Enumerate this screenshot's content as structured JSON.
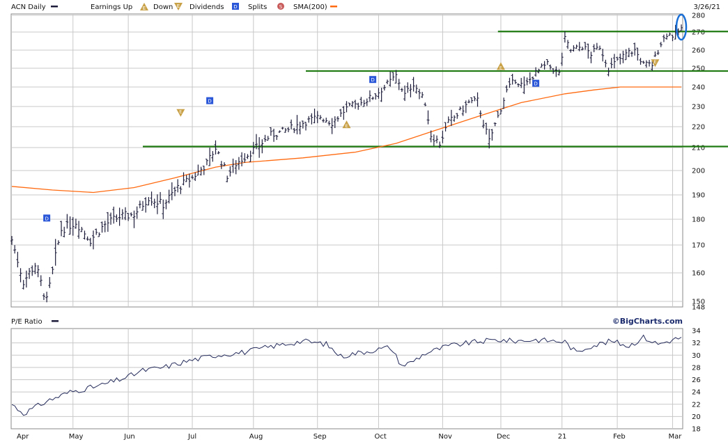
{
  "header": {
    "ticker_label": "ACN Daily",
    "earnings_up": "Earnings Up",
    "earnings_down": "Down",
    "dividends": "Dividends",
    "splits": "Splits",
    "sma": "SMA(200)",
    "date": "3/26/21"
  },
  "lower_header": {
    "pe_label": "P/E Ratio",
    "brand": "©BigCharts.com"
  },
  "colors": {
    "price_bar": "#1c1c3a",
    "sma": "#ff6a10",
    "resistance": "#1f7a12",
    "grid": "#c8c8c8",
    "dividend_marker": "#2a56d8",
    "earnings_marker": "#c8a046",
    "highlight": "#1a6fd6"
  },
  "chart_data": [
    {
      "type": "ohlc",
      "title": "ACN Daily",
      "ylim": [
        148,
        280
      ],
      "y_ticks": [
        148,
        150,
        160,
        170,
        180,
        190,
        200,
        210,
        220,
        230,
        240,
        250,
        260,
        270,
        280
      ],
      "x_month_labels": [
        "Apr",
        "May",
        "Jun",
        "Jul",
        "Aug",
        "Sep",
        "Oct",
        "Nov",
        "Dec",
        "21",
        "Feb",
        "Mar"
      ],
      "price_path": [
        [
          0,
          172
        ],
        [
          4,
          157
        ],
        [
          8,
          163
        ],
        [
          12,
          150
        ],
        [
          17,
          176
        ],
        [
          22,
          179
        ],
        [
          27,
          172
        ],
        [
          32,
          178
        ],
        [
          37,
          181
        ],
        [
          42,
          182
        ],
        [
          47,
          189
        ],
        [
          52,
          186
        ],
        [
          57,
          193
        ],
        [
          62,
          197
        ],
        [
          67,
          203
        ],
        [
          70,
          210
        ],
        [
          74,
          198
        ],
        [
          77,
          203
        ],
        [
          81,
          207
        ],
        [
          85,
          211
        ],
        [
          89,
          216
        ],
        [
          94,
          218
        ],
        [
          100,
          222
        ],
        [
          106,
          225
        ],
        [
          110,
          222
        ],
        [
          115,
          229
        ],
        [
          120,
          232
        ],
        [
          124,
          235
        ],
        [
          128,
          240
        ],
        [
          132,
          246
        ],
        [
          135,
          236
        ],
        [
          138,
          242
        ],
        [
          142,
          232
        ],
        [
          144,
          216
        ],
        [
          147,
          212
        ],
        [
          150,
          222
        ],
        [
          153,
          226
        ],
        [
          157,
          232
        ],
        [
          160,
          233
        ],
        [
          162,
          222
        ],
        [
          164,
          213
        ],
        [
          167,
          225
        ],
        [
          170,
          238
        ],
        [
          173,
          244
        ],
        [
          176,
          240
        ],
        [
          179,
          246
        ],
        [
          182,
          250
        ],
        [
          184,
          252
        ],
        [
          188,
          247
        ],
        [
          190,
          266
        ],
        [
          192,
          260
        ],
        [
          196,
          262
        ],
        [
          199,
          258
        ],
        [
          202,
          262
        ],
        [
          205,
          250
        ],
        [
          208,
          254
        ],
        [
          211,
          258
        ],
        [
          214,
          260
        ],
        [
          217,
          252
        ],
        [
          220,
          252
        ],
        [
          223,
          264
        ],
        [
          225,
          269
        ],
        [
          228,
          268
        ],
        [
          230,
          272
        ]
      ],
      "sma_200": [
        [
          0,
          193.5
        ],
        [
          14,
          192
        ],
        [
          28,
          191
        ],
        [
          42,
          193
        ],
        [
          56,
          197
        ],
        [
          70,
          201.5
        ],
        [
          80,
          203.5
        ],
        [
          100,
          205.5
        ],
        [
          118,
          208
        ],
        [
          132,
          212
        ],
        [
          145,
          218
        ],
        [
          160,
          225
        ],
        [
          175,
          232
        ],
        [
          190,
          236.5
        ],
        [
          200,
          238.5
        ],
        [
          209,
          240
        ],
        [
          230,
          240
        ]
      ],
      "levels": [
        {
          "name": "support",
          "value": 210.5,
          "from_day": 45
        },
        {
          "name": "mid",
          "value": 248.5,
          "from_day": 101
        },
        {
          "name": "resistance",
          "value": 270.3,
          "from_day": 167
        }
      ],
      "dividends": [
        [
          12,
          180.5
        ],
        [
          68,
          233
        ],
        [
          124,
          244
        ],
        [
          180,
          242
        ]
      ],
      "earnings": [
        [
          58,
          227
        ],
        [
          115,
          221
        ],
        [
          168,
          251
        ],
        [
          221,
          253
        ]
      ]
    },
    {
      "type": "line",
      "title": "P/E Ratio",
      "ylim": [
        18,
        34
      ],
      "y_ticks": [
        18,
        20,
        22,
        24,
        26,
        28,
        30,
        32,
        34
      ],
      "values": [
        [
          0,
          22
        ],
        [
          4,
          20.5
        ],
        [
          8,
          21.5
        ],
        [
          12,
          22.5
        ],
        [
          20,
          24
        ],
        [
          30,
          25
        ],
        [
          40,
          26.5
        ],
        [
          45,
          27.5
        ],
        [
          52,
          28
        ],
        [
          60,
          29
        ],
        [
          70,
          30
        ],
        [
          80,
          30.5
        ],
        [
          90,
          31.5
        ],
        [
          100,
          32.3
        ],
        [
          108,
          31.8
        ],
        [
          113,
          29.8
        ],
        [
          118,
          30.3
        ],
        [
          124,
          30.8
        ],
        [
          130,
          31.3
        ],
        [
          134,
          28.3
        ],
        [
          137,
          28.8
        ],
        [
          142,
          30.3
        ],
        [
          150,
          31.5
        ],
        [
          160,
          32.2
        ],
        [
          167,
          32.5
        ],
        [
          172,
          32.3
        ],
        [
          180,
          32.5
        ],
        [
          190,
          32.2
        ],
        [
          194,
          30.4
        ],
        [
          198,
          31.4
        ],
        [
          206,
          32.3
        ],
        [
          212,
          31.5
        ],
        [
          217,
          32.9
        ],
        [
          222,
          31.8
        ],
        [
          230,
          32.9
        ]
      ]
    }
  ]
}
